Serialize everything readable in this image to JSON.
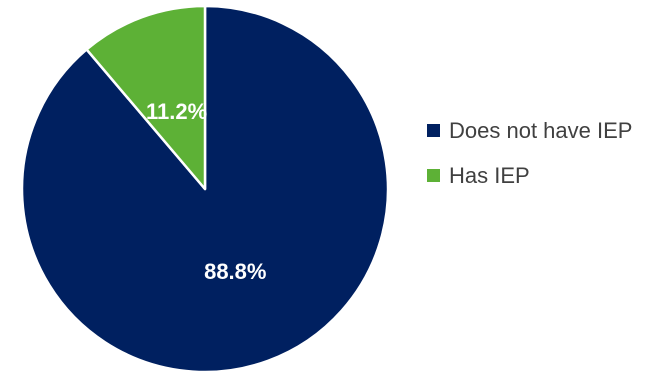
{
  "chart_data": {
    "type": "pie",
    "categories": [
      "Does not have IEP",
      "Has IEP"
    ],
    "values": [
      88.8,
      11.2
    ],
    "data_labels": [
      "88.8%",
      "11.2%"
    ],
    "colors": [
      "#002060",
      "#5DB136"
    ],
    "start_angle_deg": 0,
    "direction": "clockwise",
    "legend_position": "right"
  },
  "legend": {
    "items": [
      {
        "label": "Does not have IEP",
        "color": "#002060"
      },
      {
        "label": "Has IEP",
        "color": "#5DB136"
      }
    ]
  }
}
